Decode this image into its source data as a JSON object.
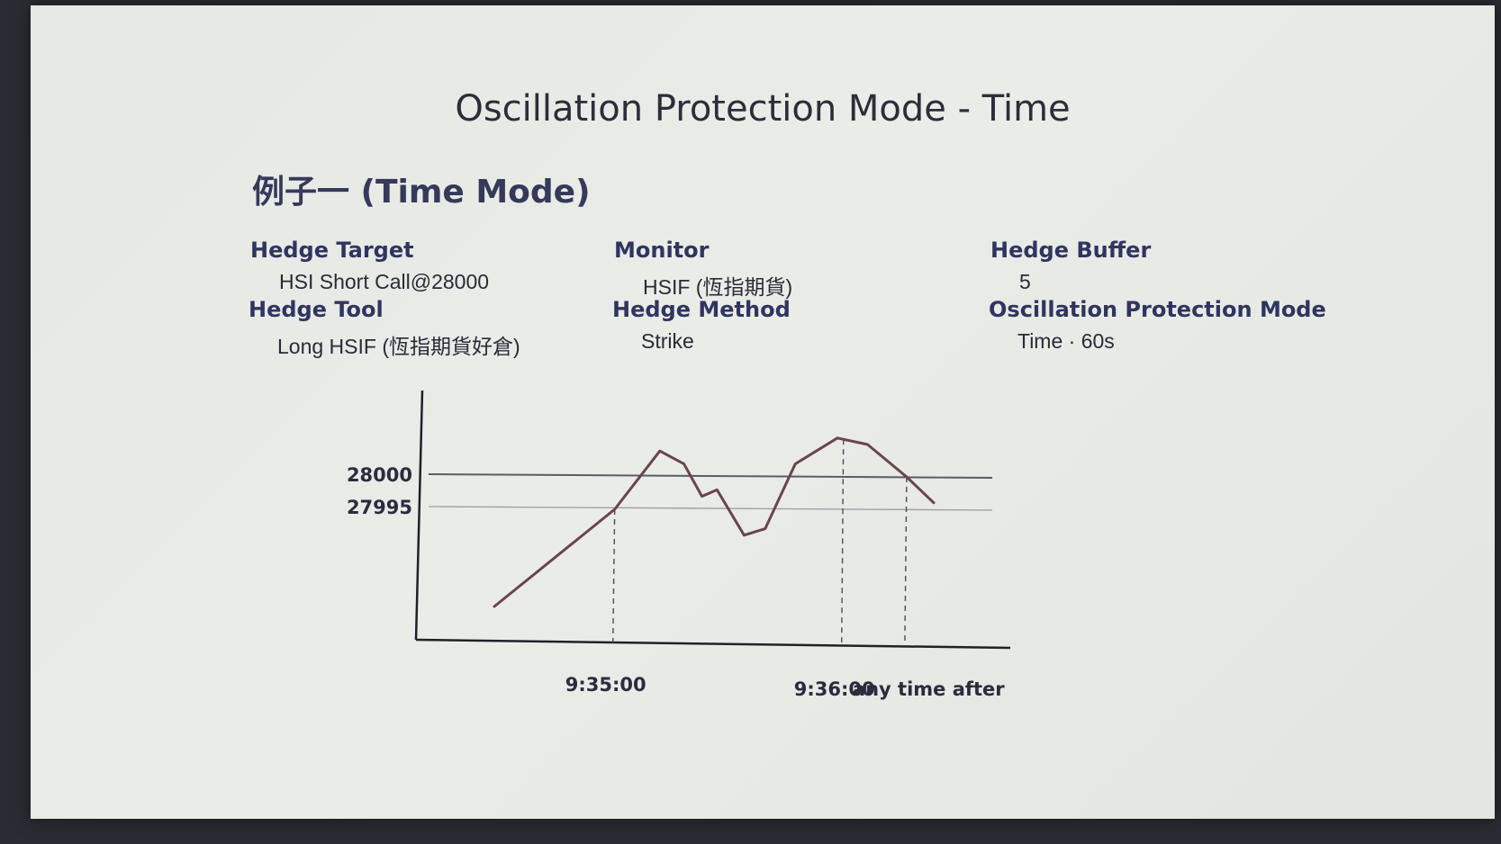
{
  "slide": {
    "title": "Oscillation Protection Mode - Time",
    "example_title": "例子一 (Time Mode)"
  },
  "params": {
    "hedge_target": {
      "label": "Hedge Target",
      "value": "HSI Short Call@28000"
    },
    "hedge_tool": {
      "label": "Hedge Tool",
      "value": "Long HSIF (恆指期貨好倉)"
    },
    "monitor": {
      "label": "Monitor",
      "value": "HSIF (恆指期貨)"
    },
    "hedge_method": {
      "label": "Hedge Method",
      "value": "Strike"
    },
    "hedge_buffer": {
      "label": "Hedge Buffer",
      "value": "5"
    },
    "oscillation_mode": {
      "label": "Oscillation Protection Mode",
      "value": "Time · 60s"
    }
  },
  "chart_data": {
    "type": "line",
    "title": "",
    "xlabel": "",
    "ylabel": "",
    "y_ticks": [
      {
        "value": 28000,
        "label": "28000"
      },
      {
        "value": 27995,
        "label": "27995"
      }
    ],
    "x_ticks": [
      {
        "t": 2.0,
        "label": "9:35:00"
      },
      {
        "t": 5.8,
        "label": "9:36:00"
      },
      {
        "t": 6.85,
        "label": "any time after"
      }
    ],
    "reference_lines": [
      28000,
      27995
    ],
    "xlim": [
      -1.1,
      7.4
    ],
    "ylim": [
      27975,
      28007
    ],
    "series": [
      {
        "color": "#6b4450",
        "points": [
          {
            "t": 0.0,
            "y": 27980
          },
          {
            "t": 2.0,
            "y": 27995
          },
          {
            "t": 2.75,
            "y": 28004
          },
          {
            "t": 3.15,
            "y": 28002
          },
          {
            "t": 3.45,
            "y": 27997
          },
          {
            "t": 3.7,
            "y": 27998
          },
          {
            "t": 4.15,
            "y": 27991
          },
          {
            "t": 4.5,
            "y": 27992
          },
          {
            "t": 5.0,
            "y": 28002
          },
          {
            "t": 5.7,
            "y": 28006
          },
          {
            "t": 6.2,
            "y": 28005
          },
          {
            "t": 6.85,
            "y": 28000
          },
          {
            "t": 7.3,
            "y": 27996
          }
        ]
      }
    ]
  }
}
